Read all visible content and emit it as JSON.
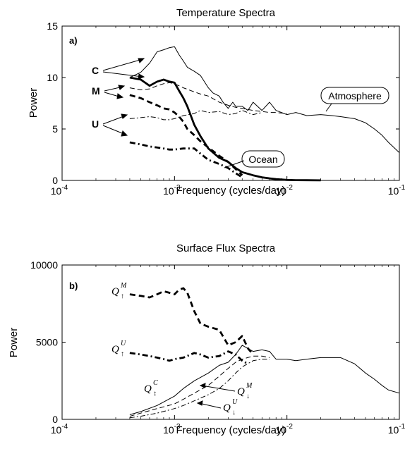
{
  "chart_data": [
    {
      "type": "line",
      "panel_label": "a)",
      "title": "Temperature Spectra",
      "xlabel": "Frequency (cycles/day)",
      "ylabel": "Power",
      "xscale": "log",
      "xlim": [
        0.0001,
        0.1
      ],
      "ylim": [
        0,
        15
      ],
      "x_ticks": [
        0.0001,
        0.001,
        0.01,
        0.1
      ],
      "x_tick_base": "10",
      "x_tick_exponents": [
        "-4",
        "-3",
        "-2",
        "-1"
      ],
      "y_ticks": [
        "0",
        "5",
        "10",
        "15"
      ],
      "group_labels": [
        "C",
        "M",
        "U"
      ],
      "callouts": [
        "Atmosphere",
        "Ocean"
      ],
      "series": [
        {
          "style": "thin-solid",
          "x": [
            0.0004,
            0.0005,
            0.0006,
            0.0007,
            0.0008,
            0.0009,
            0.001,
            0.0011,
            0.0012,
            0.0013,
            0.0015,
            0.0017,
            0.002,
            0.0022,
            0.0025,
            0.0027,
            0.003,
            0.0033,
            0.0035,
            0.004,
            0.0045,
            0.005,
            0.006,
            0.007,
            0.008,
            0.01,
            0.012,
            0.015,
            0.02,
            0.025,
            0.03,
            0.04,
            0.05,
            0.06,
            0.07,
            0.08,
            0.1
          ],
          "y": [
            10.0,
            10.5,
            11.4,
            12.5,
            12.7,
            12.9,
            13.0,
            12.2,
            11.6,
            11.0,
            10.6,
            10.2,
            9.0,
            8.5,
            8.2,
            7.6,
            7.0,
            7.6,
            7.2,
            7.2,
            6.8,
            7.6,
            6.8,
            7.6,
            6.8,
            6.4,
            6.6,
            6.3,
            6.4,
            6.3,
            6.2,
            6.0,
            5.6,
            5.0,
            4.4,
            3.7,
            2.7
          ]
        },
        {
          "style": "thick-solid",
          "x": [
            0.0004,
            0.0005,
            0.0006,
            0.0007,
            0.0008,
            0.0009,
            0.001,
            0.0011,
            0.0012,
            0.0013,
            0.0015,
            0.0017,
            0.002,
            0.0025,
            0.003,
            0.0035,
            0.004,
            0.005,
            0.006,
            0.007,
            0.008,
            0.01,
            0.012,
            0.015,
            0.02
          ],
          "y": [
            10.0,
            9.8,
            9.2,
            9.6,
            9.8,
            9.6,
            9.5,
            8.7,
            8.0,
            7.2,
            5.4,
            4.3,
            3.1,
            2.2,
            1.8,
            1.2,
            0.8,
            0.5,
            0.3,
            0.2,
            0.12,
            0.05,
            0.03,
            0.02,
            0.01
          ]
        },
        {
          "style": "thin-dashed",
          "x": [
            0.0004,
            0.0005,
            0.0006,
            0.0007,
            0.0008,
            0.0009,
            0.001,
            0.0012,
            0.0015,
            0.0017,
            0.002,
            0.0025,
            0.003,
            0.0035,
            0.004,
            0.005,
            0.006,
            0.007,
            0.008,
            0.01
          ],
          "y": [
            9.0,
            8.8,
            8.9,
            9.2,
            9.4,
            9.5,
            9.4,
            9.0,
            8.6,
            8.4,
            8.2,
            7.6,
            7.3,
            7.1,
            7.0,
            6.8,
            6.7,
            6.6,
            6.6,
            6.5
          ]
        },
        {
          "style": "thick-dashed",
          "x": [
            0.0004,
            0.0005,
            0.0006,
            0.0007,
            0.0008,
            0.0009,
            0.001,
            0.0011,
            0.0012,
            0.0013,
            0.0015,
            0.0017,
            0.002,
            0.0025,
            0.003,
            0.0035,
            0.004
          ],
          "y": [
            8.3,
            8.0,
            7.6,
            7.3,
            7.0,
            6.9,
            6.6,
            6.2,
            5.7,
            5.0,
            4.4,
            3.8,
            3.2,
            2.4,
            1.8,
            1.1,
            0.5
          ]
        },
        {
          "style": "thin-dashdot",
          "x": [
            0.0004,
            0.0005,
            0.0006,
            0.0007,
            0.0008,
            0.0009,
            0.001,
            0.0012,
            0.0015,
            0.0017,
            0.002,
            0.0025,
            0.003,
            0.0035,
            0.004,
            0.005,
            0.006
          ],
          "y": [
            6.0,
            6.1,
            6.2,
            6.1,
            5.9,
            5.9,
            6.0,
            6.3,
            6.5,
            6.8,
            6.6,
            6.7,
            6.4,
            6.5,
            6.8,
            6.4,
            6.6
          ]
        },
        {
          "style": "thick-dashdot",
          "x": [
            0.0004,
            0.0005,
            0.0006,
            0.0007,
            0.0008,
            0.0009,
            0.001,
            0.0012,
            0.0015,
            0.0017,
            0.002,
            0.0025,
            0.003,
            0.0035,
            0.004
          ],
          "y": [
            3.7,
            3.5,
            3.3,
            3.2,
            3.1,
            3.0,
            3.0,
            3.1,
            3.1,
            2.6,
            2.0,
            1.6,
            1.2,
            0.7,
            0.3
          ]
        }
      ]
    },
    {
      "type": "line",
      "panel_label": "b)",
      "title": "Surface Flux Spectra",
      "xlabel": "Frequency (cycles/day)",
      "ylabel": "Power",
      "xscale": "log",
      "xlim": [
        0.0001,
        0.1
      ],
      "ylim": [
        0,
        10000
      ],
      "x_ticks": [
        0.0001,
        0.001,
        0.01,
        0.1
      ],
      "x_tick_base": "10",
      "x_tick_exponents": [
        "-4",
        "-3",
        "-2",
        "-1"
      ],
      "y_ticks": [
        "0",
        "5000",
        "10000"
      ],
      "labels": [
        {
          "base": "Q",
          "sup": "M",
          "sub": "↑"
        },
        {
          "base": "Q",
          "sup": "U",
          "sub": "↑"
        },
        {
          "base": "Q",
          "sup": "C",
          "sub": "↕"
        },
        {
          "base": "Q",
          "sup": "M",
          "sub": "↓"
        },
        {
          "base": "Q",
          "sup": "U",
          "sub": "↓"
        }
      ],
      "series": [
        {
          "style": "thick-dashed",
          "x": [
            0.0004,
            0.0005,
            0.0006,
            0.0007,
            0.0008,
            0.0009,
            0.001,
            0.0011,
            0.0012,
            0.0013,
            0.0015,
            0.0017,
            0.002,
            0.0025,
            0.003,
            0.0035,
            0.004,
            0.0045,
            0.005
          ],
          "y": [
            8100,
            8000,
            7900,
            8100,
            8300,
            8200,
            8100,
            8400,
            8500,
            8200,
            7000,
            6200,
            6000,
            5800,
            4800,
            5000,
            5400,
            4600,
            4200
          ]
        },
        {
          "style": "thick-dashdot",
          "x": [
            0.0004,
            0.0005,
            0.0006,
            0.0007,
            0.0008,
            0.0009,
            0.001,
            0.0012,
            0.0015,
            0.0017,
            0.002,
            0.0025,
            0.003,
            0.0035,
            0.004,
            0.0045
          ],
          "y": [
            4300,
            4200,
            4100,
            4000,
            3900,
            3800,
            3900,
            4000,
            4300,
            4200,
            4000,
            4100,
            4400,
            4200,
            3800,
            3600
          ]
        },
        {
          "style": "thin-solid",
          "x": [
            0.0004,
            0.0005,
            0.0007,
            0.001,
            0.0012,
            0.0015,
            0.002,
            0.0025,
            0.003,
            0.0035,
            0.004,
            0.005,
            0.006,
            0.007,
            0.008,
            0.01,
            0.012,
            0.015,
            0.02,
            0.025,
            0.03,
            0.04,
            0.05,
            0.06,
            0.07,
            0.08,
            0.1
          ],
          "y": [
            300,
            500,
            900,
            1500,
            2000,
            2500,
            3000,
            3500,
            3700,
            4200,
            4800,
            4400,
            4500,
            4400,
            3900,
            3900,
            3800,
            3900,
            4000,
            4000,
            4000,
            3600,
            3000,
            2600,
            2200,
            1900,
            1700
          ]
        },
        {
          "style": "thin-dashed",
          "x": [
            0.0004,
            0.0005,
            0.0007,
            0.001,
            0.0012,
            0.0015,
            0.002,
            0.0025,
            0.003,
            0.0035,
            0.004,
            0.005,
            0.006,
            0.007
          ],
          "y": [
            200,
            400,
            700,
            1000,
            1300,
            1700,
            2200,
            2800,
            3300,
            3700,
            3900,
            4100,
            4100,
            4000
          ]
        },
        {
          "style": "thin-dashdot",
          "x": [
            0.0004,
            0.0005,
            0.0007,
            0.001,
            0.0012,
            0.0015,
            0.002,
            0.0025,
            0.003,
            0.0035,
            0.004,
            0.005,
            0.006,
            0.007
          ],
          "y": [
            100,
            200,
            400,
            700,
            900,
            1200,
            1600,
            2000,
            2500,
            3000,
            3400,
            3800,
            3900,
            3900
          ]
        }
      ]
    }
  ]
}
